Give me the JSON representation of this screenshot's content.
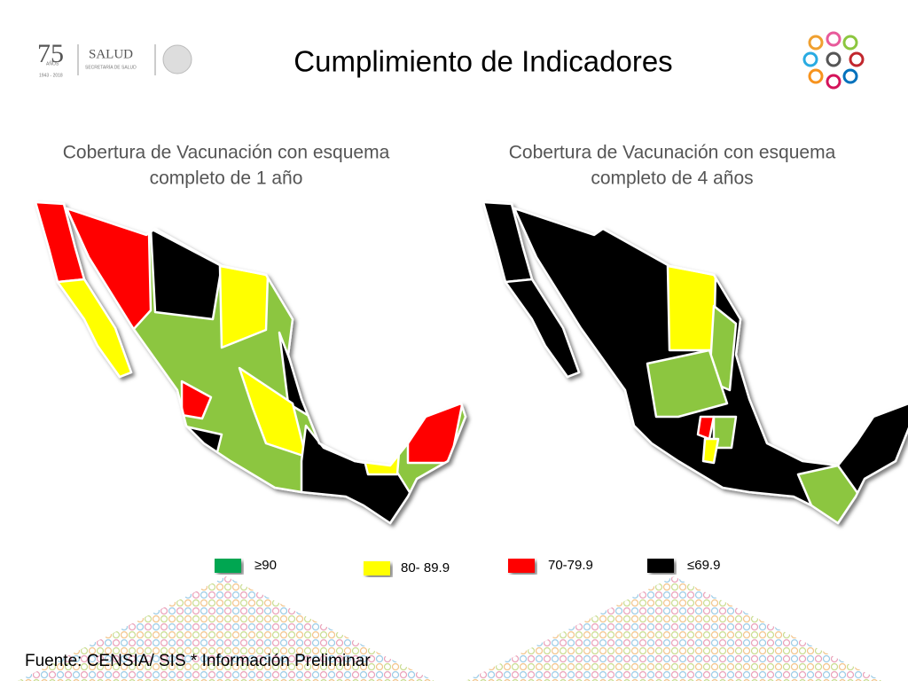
{
  "header": {
    "title": "Cumplimiento de Indicadores",
    "logo_number": "75",
    "logo_years": "AÑOS",
    "logo_dates": "1943 - 2018",
    "logo_salud": "SALUD",
    "logo_secretaria": "SECRETARÍA DE SALUD"
  },
  "maps": [
    {
      "title_line1": "Cobertura de Vacunación con esquema",
      "title_line2": "completo de 1 año"
    },
    {
      "title_line1": "Cobertura de Vacunación con esquema",
      "title_line2": "completo de 4 años"
    }
  ],
  "legend": [
    {
      "label": "≥90",
      "color": "#00a651"
    },
    {
      "label": "80- 89.9",
      "color": "#ffff00"
    },
    {
      "label": "70-79.9",
      "color": "#ff0000"
    },
    {
      "label": "≤69.9",
      "color": "#000000"
    }
  ],
  "footer": {
    "source": "Fuente: CENSIA/ SIS * Información Preliminar"
  }
}
